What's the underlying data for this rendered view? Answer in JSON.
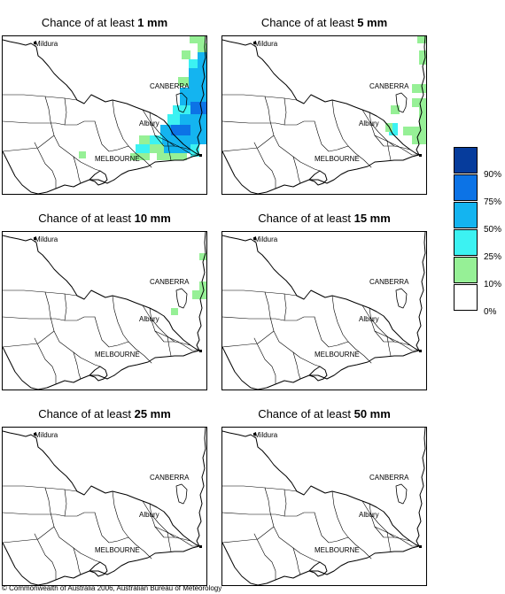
{
  "panels": [
    {
      "title_prefix": "Chance of at least ",
      "amount": "1 mm"
    },
    {
      "title_prefix": "Chance of at least ",
      "amount": "5 mm"
    },
    {
      "title_prefix": "Chance of at least ",
      "amount": "10 mm"
    },
    {
      "title_prefix": "Chance of at least ",
      "amount": "15 mm"
    },
    {
      "title_prefix": "Chance of at least ",
      "amount": "25 mm"
    },
    {
      "title_prefix": "Chance of at least ",
      "amount": "50 mm"
    }
  ],
  "cities": {
    "mildura": "Mildura",
    "canberra": "CANBERRA",
    "albury": "Albury",
    "melbourne": "MELBOURNE"
  },
  "legend": {
    "labels": [
      "90%",
      "75%",
      "50%",
      "25%",
      "10%",
      "0%"
    ],
    "colors": [
      "#063c9c",
      "#0c73e6",
      "#14b4f0",
      "#3cf2f2",
      "#96f096",
      "#ffffff"
    ]
  },
  "copyright": "© Commonwealth of Australia 2006, Australian Bureau of Meteorology"
}
